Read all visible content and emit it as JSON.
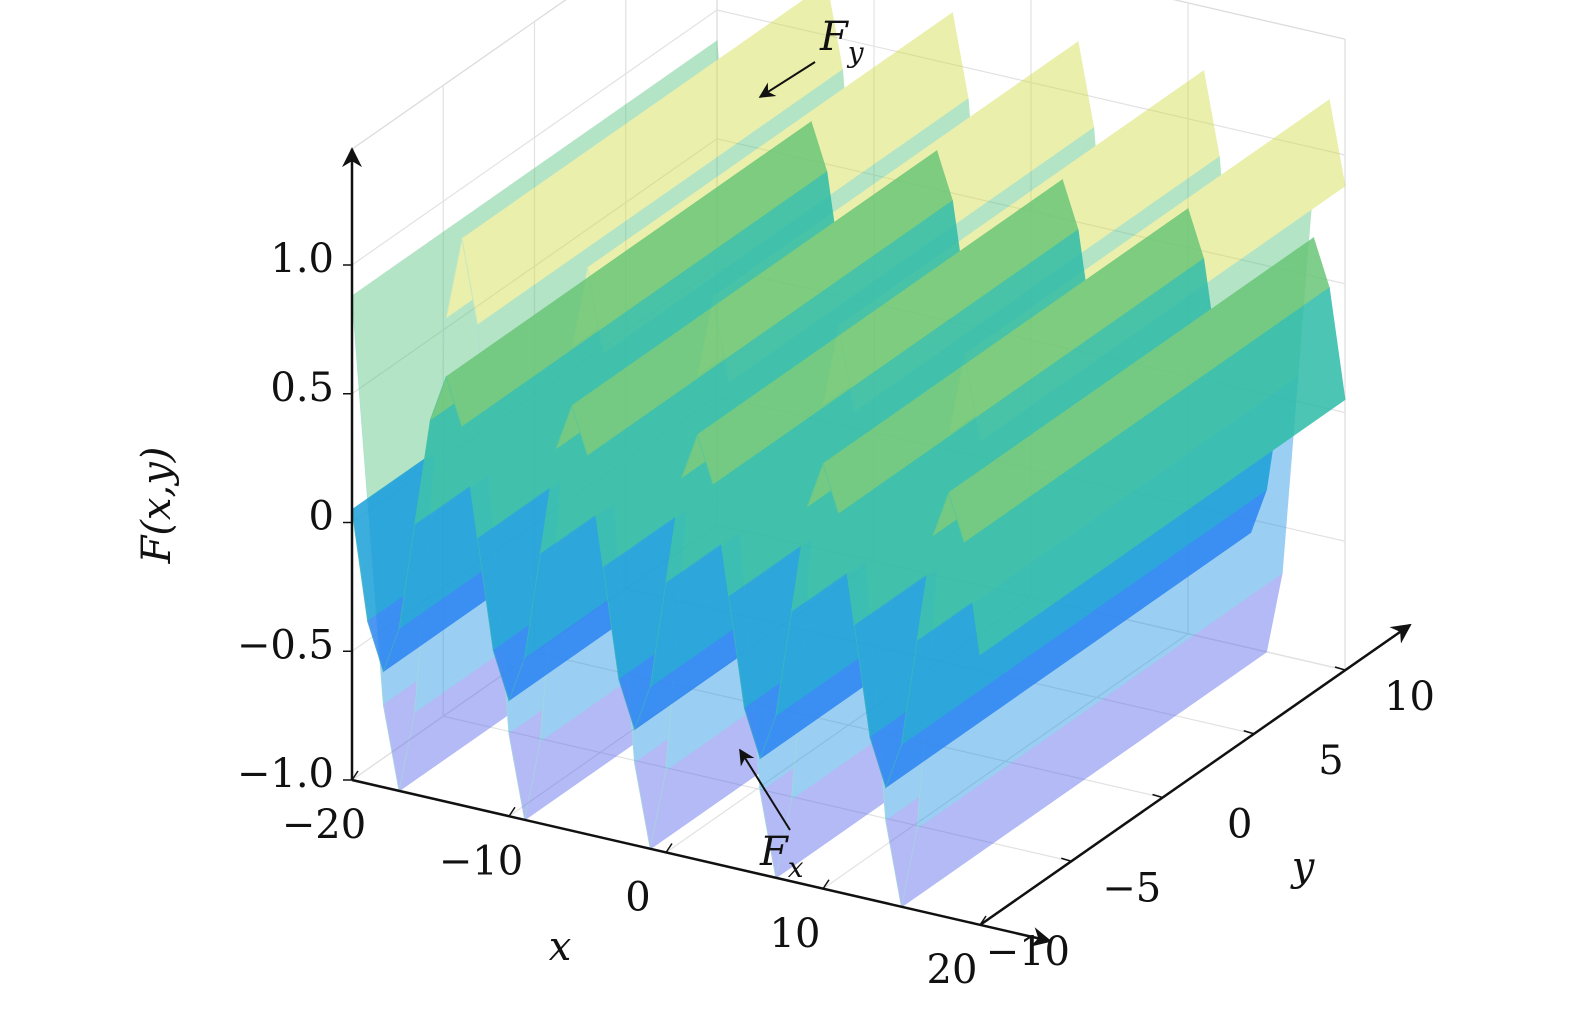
{
  "chart_data": {
    "type": "surface3d",
    "zlabel": "F(x,y)",
    "xlabel": "x",
    "ylabel": "y",
    "x": [
      -20,
      -19,
      -18,
      -17,
      -16,
      -15,
      -14,
      -13,
      -12,
      -11,
      -10,
      -9,
      -8,
      -7,
      -6,
      -5,
      -4,
      -3,
      -2,
      -1,
      0,
      1,
      2,
      3,
      4,
      5,
      6,
      7,
      8,
      9,
      10,
      11,
      12,
      13,
      14,
      15,
      16,
      17,
      18,
      19,
      20
    ],
    "xlim": [
      -20,
      20
    ],
    "xticks": [
      {
        "value": -20,
        "label": "−20"
      },
      {
        "value": -10,
        "label": "−10"
      },
      0,
      10,
      20
    ],
    "ylim": [
      -10,
      10
    ],
    "yticks": [
      {
        "value": -10,
        "label": "−10"
      },
      {
        "value": -5,
        "label": "−5"
      },
      0,
      5,
      10
    ],
    "zlim": [
      -1,
      1.45
    ],
    "zticks": [
      {
        "value": -1,
        "label": "−1.0"
      },
      {
        "value": -0.5,
        "label": "−0.5"
      },
      0,
      {
        "value": 0.5,
        "label": "0.5"
      },
      {
        "value": 1,
        "label": "1.0"
      }
    ],
    "colormap": [
      "#6a5be8",
      "#2b86f2",
      "#0cb7c0",
      "#7cc96a",
      "#f5e43a"
    ],
    "grid": true,
    "series": [
      {
        "name": "F_y",
        "opacity": 0.45,
        "values": [
          0.88,
          0.1,
          -0.68,
          -1.0,
          -0.68,
          0.1,
          0.88,
          1.2,
          0.88,
          0.1,
          -0.68,
          -1.0,
          -0.68,
          0.1,
          0.88,
          1.2,
          0.88,
          0.1,
          -0.68,
          -1.0,
          -0.68,
          0.1,
          0.88,
          1.2,
          0.88,
          0.1,
          -0.68,
          -1.0,
          -0.68,
          0.1,
          0.88,
          1.2,
          0.88,
          0.1,
          -0.68,
          -1.0,
          -0.68,
          0.1,
          0.88,
          1.2,
          0.88
        ]
      },
      {
        "name": "F_x",
        "opacity": 0.85,
        "values": [
          0.05,
          -0.37,
          -0.55,
          -0.37,
          0.05,
          0.47,
          0.65,
          0.47,
          0.05,
          -0.37,
          -0.55,
          -0.37,
          0.05,
          0.47,
          0.65,
          0.47,
          0.05,
          -0.37,
          -0.55,
          -0.37,
          0.05,
          0.47,
          0.65,
          0.47,
          0.05,
          -0.37,
          -0.55,
          -0.37,
          0.05,
          0.47,
          0.65,
          0.47,
          0.05,
          -0.37,
          -0.55,
          -0.37,
          0.05,
          0.47,
          0.65,
          0.47,
          0.05
        ]
      }
    ],
    "annotations": [
      {
        "text": "F",
        "sub": "y"
      },
      {
        "text": "F",
        "sub": "x"
      }
    ]
  }
}
